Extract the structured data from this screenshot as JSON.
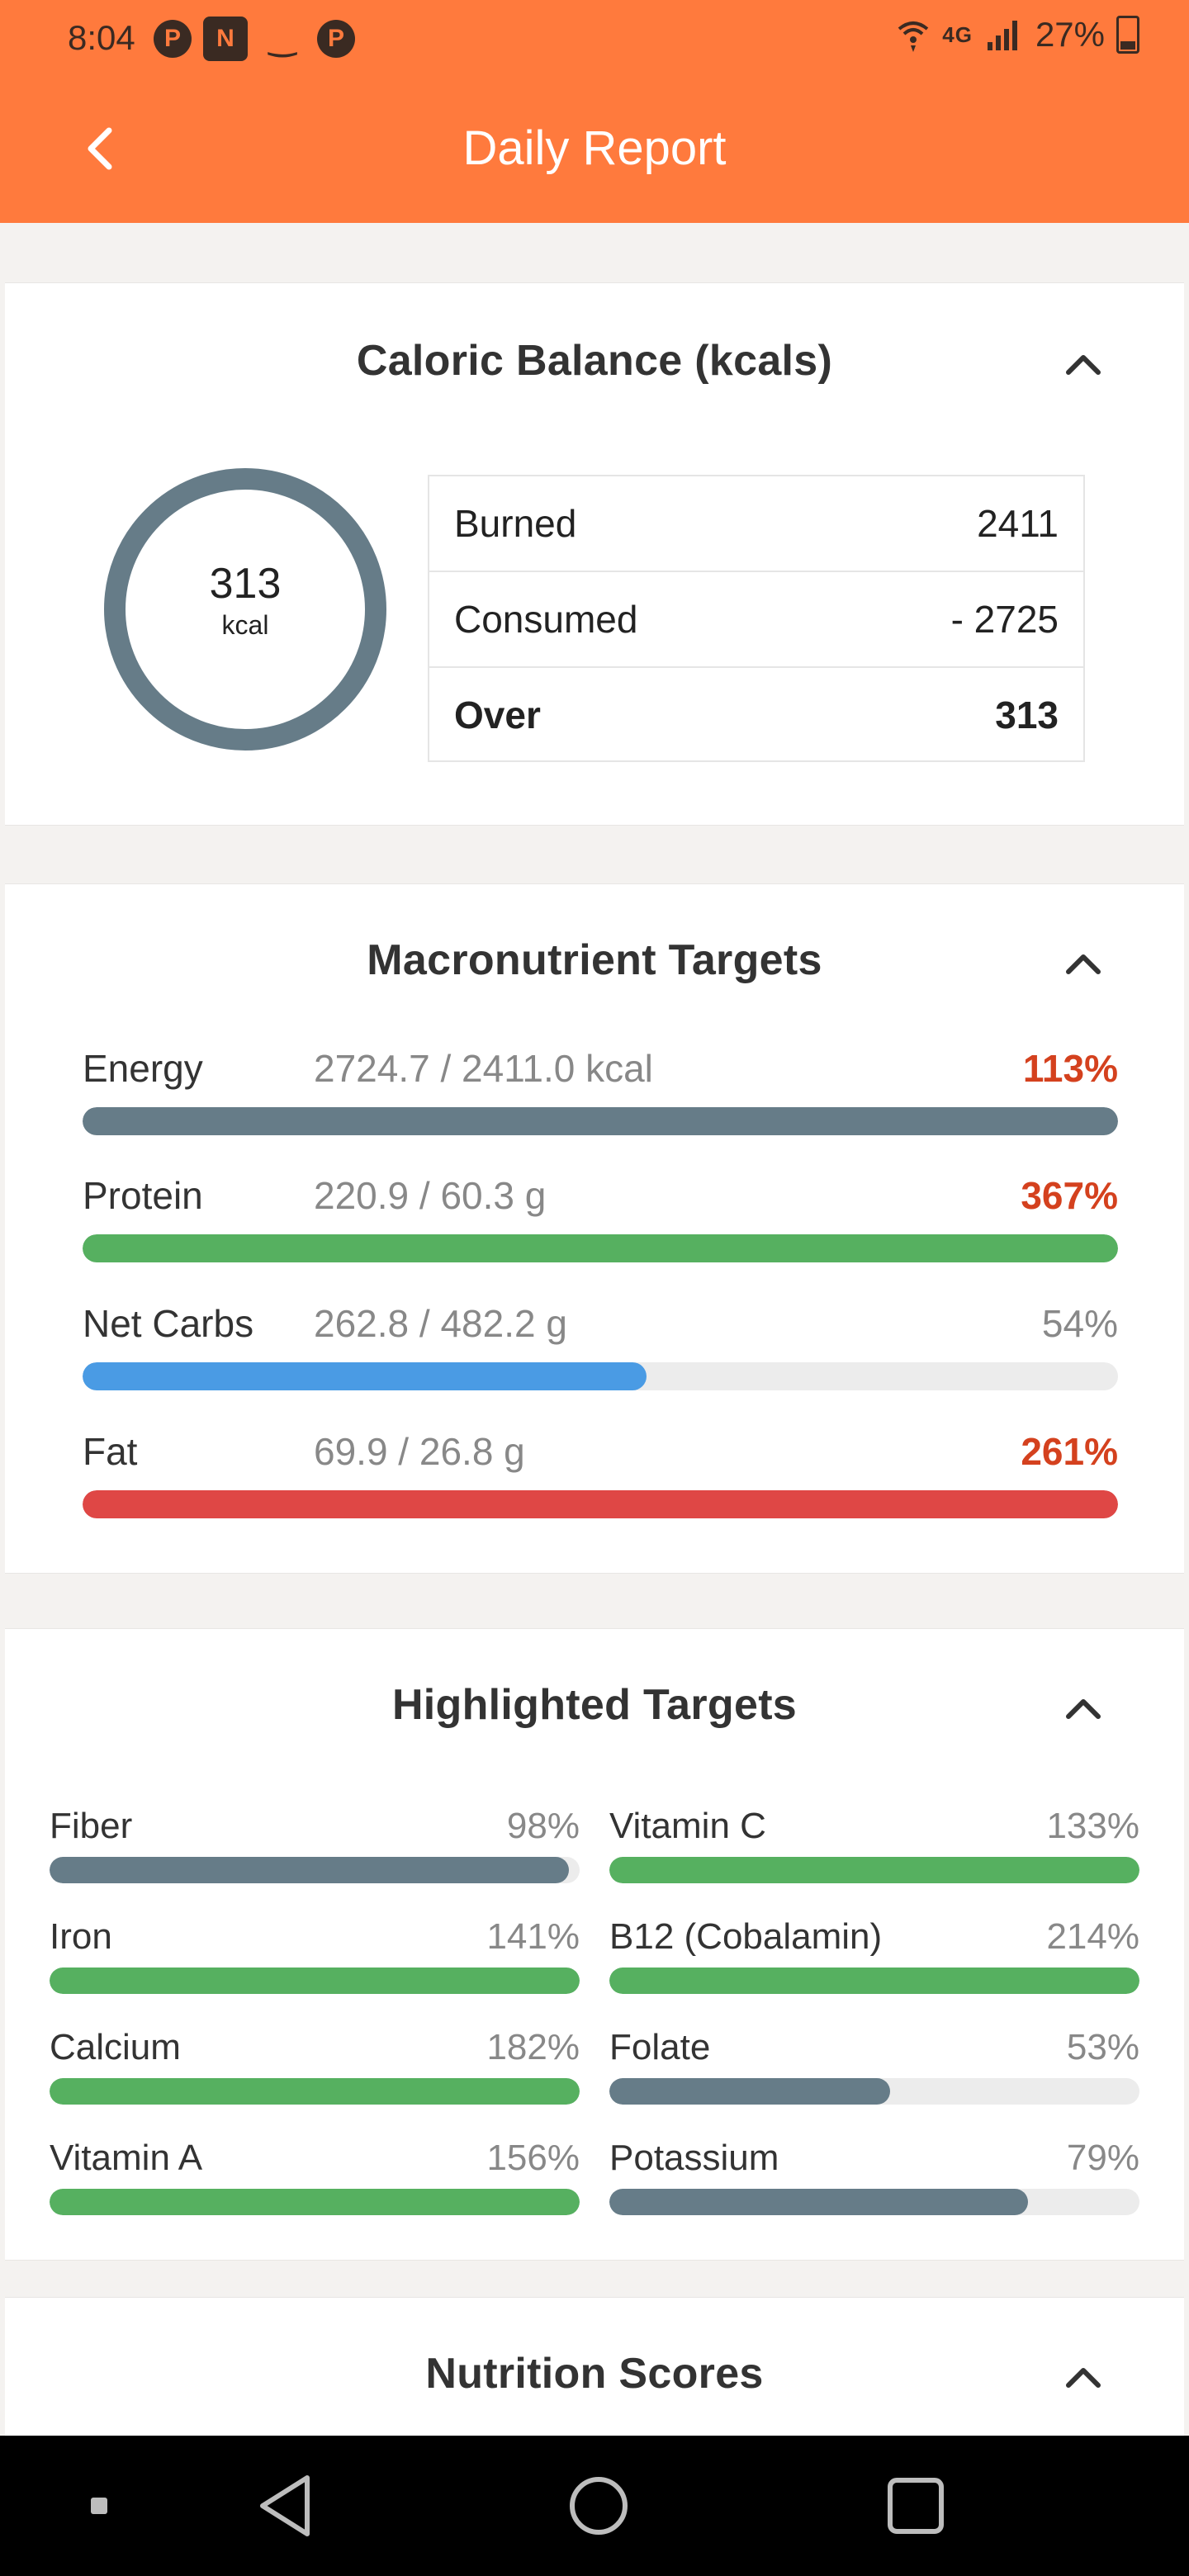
{
  "status_bar": {
    "time": "8:04",
    "network": "4G",
    "battery": "27%"
  },
  "header": {
    "title": "Daily Report"
  },
  "caloric_balance": {
    "title": "Caloric Balance (kcals)",
    "ring_value": "313",
    "ring_unit": "kcal",
    "rows": [
      {
        "label": "Burned",
        "value": "2411"
      },
      {
        "label": "Consumed",
        "value": "- 2725"
      },
      {
        "label": "Over",
        "value": "313"
      }
    ]
  },
  "macronutrients": {
    "title": "Macronutrient Targets",
    "items": [
      {
        "name": "Energy",
        "amount": "2724.7 / 2411.0 kcal",
        "percent": "113%",
        "fill": 1.0,
        "color": "#667c88",
        "over": true
      },
      {
        "name": "Protein",
        "amount": "220.9 / 60.3 g",
        "percent": "367%",
        "fill": 1.0,
        "color": "#56b060",
        "over": true
      },
      {
        "name": "Net Carbs",
        "amount": "262.8 / 482.2 g",
        "percent": "54%",
        "fill": 0.545,
        "color": "#4a9be4",
        "over": false
      },
      {
        "name": "Fat",
        "amount": "69.9 / 26.8 g",
        "percent": "261%",
        "fill": 1.0,
        "color": "#df4745",
        "over": true
      }
    ]
  },
  "highlighted": {
    "title": "Highlighted Targets",
    "items": [
      {
        "name": "Fiber",
        "percent": "98%",
        "fill": 0.98,
        "color": "#667c88"
      },
      {
        "name": "Vitamin C",
        "percent": "133%",
        "fill": 1.0,
        "color": "#56b060"
      },
      {
        "name": "Iron",
        "percent": "141%",
        "fill": 1.0,
        "color": "#56b060"
      },
      {
        "name": "B12 (Cobalamin)",
        "percent": "214%",
        "fill": 1.0,
        "color": "#56b060"
      },
      {
        "name": "Calcium",
        "percent": "182%",
        "fill": 1.0,
        "color": "#56b060"
      },
      {
        "name": "Folate",
        "percent": "53%",
        "fill": 0.53,
        "color": "#667c88"
      },
      {
        "name": "Vitamin A",
        "percent": "156%",
        "fill": 1.0,
        "color": "#56b060"
      },
      {
        "name": "Potassium",
        "percent": "79%",
        "fill": 0.79,
        "color": "#667c88"
      }
    ]
  },
  "nutrition_scores": {
    "title": "Nutrition Scores"
  },
  "colors": {
    "accent": "#ff7a3d",
    "ring": "#667c88",
    "over": "#d4411e"
  }
}
